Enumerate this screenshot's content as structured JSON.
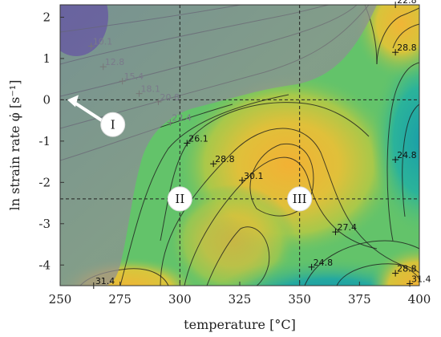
{
  "chart_data": {
    "type": "heatmap",
    "xlabel": "temperature [°C]",
    "ylabel": "ln strain rate φ̇ [s⁻¹]",
    "xlim": [
      250,
      400
    ],
    "ylim": [
      -4.5,
      2.3
    ],
    "x_ticks": [
      "250",
      "275",
      "300",
      "325",
      "350",
      "375",
      "400"
    ],
    "y_ticks": [
      "2",
      "1",
      "0",
      "-1",
      "-2",
      "-3",
      "-4"
    ],
    "grid": "dashed lines at temperature 300 and 350, ln strain rate 0 and -2.4",
    "reference_lines": {
      "x": [
        300,
        350
      ],
      "y": [
        0,
        -2.4
      ]
    },
    "contour_labels": [
      {
        "text": "10.1",
        "x": 263,
        "y": 1.3,
        "faded": true
      },
      {
        "text": "12.8",
        "x": 268,
        "y": 0.8,
        "faded": true
      },
      {
        "text": "15.4",
        "x": 276,
        "y": 0.45,
        "faded": true
      },
      {
        "text": "18.1",
        "x": 283,
        "y": 0.15,
        "faded": true
      },
      {
        "text": "20.8",
        "x": 291,
        "y": -0.05,
        "faded": true
      },
      {
        "text": "23.4",
        "x": 296,
        "y": -0.55,
        "faded": true
      },
      {
        "text": "26.1",
        "x": 303,
        "y": -1.05
      },
      {
        "text": "28.8",
        "x": 314,
        "y": -1.55
      },
      {
        "text": "30.1",
        "x": 326,
        "y": -1.95
      },
      {
        "text": "27.4",
        "x": 365,
        "y": -3.2
      },
      {
        "text": "24.8",
        "x": 355,
        "y": -4.05
      },
      {
        "text": "24.8",
        "x": 390,
        "y": -1.45
      },
      {
        "text": "22.8",
        "x": 390,
        "y": 2.3
      },
      {
        "text": "28.8",
        "x": 390,
        "y": 1.15
      },
      {
        "text": "28.8",
        "x": 390,
        "y": -4.2
      },
      {
        "text": "31.4",
        "x": 396,
        "y": -4.45
      },
      {
        "text": "31.4",
        "x": 264,
        "y": -4.5
      }
    ],
    "regions": [
      {
        "label": "I",
        "x": 272,
        "y": -0.6,
        "arrow_to": {
          "x": 253,
          "y": 0
        }
      },
      {
        "label": "II",
        "x": 300,
        "y": -2.4
      },
      {
        "label": "III",
        "x": 350,
        "y": -2.4
      }
    ],
    "colors": {
      "low": "#2e1a9e",
      "mid_low": "#1aa8a3",
      "mid": "#63c36a",
      "mid_high": "#d2c63a",
      "high": "#f2b134",
      "unstable_overlay": "#9a9a9a"
    }
  }
}
